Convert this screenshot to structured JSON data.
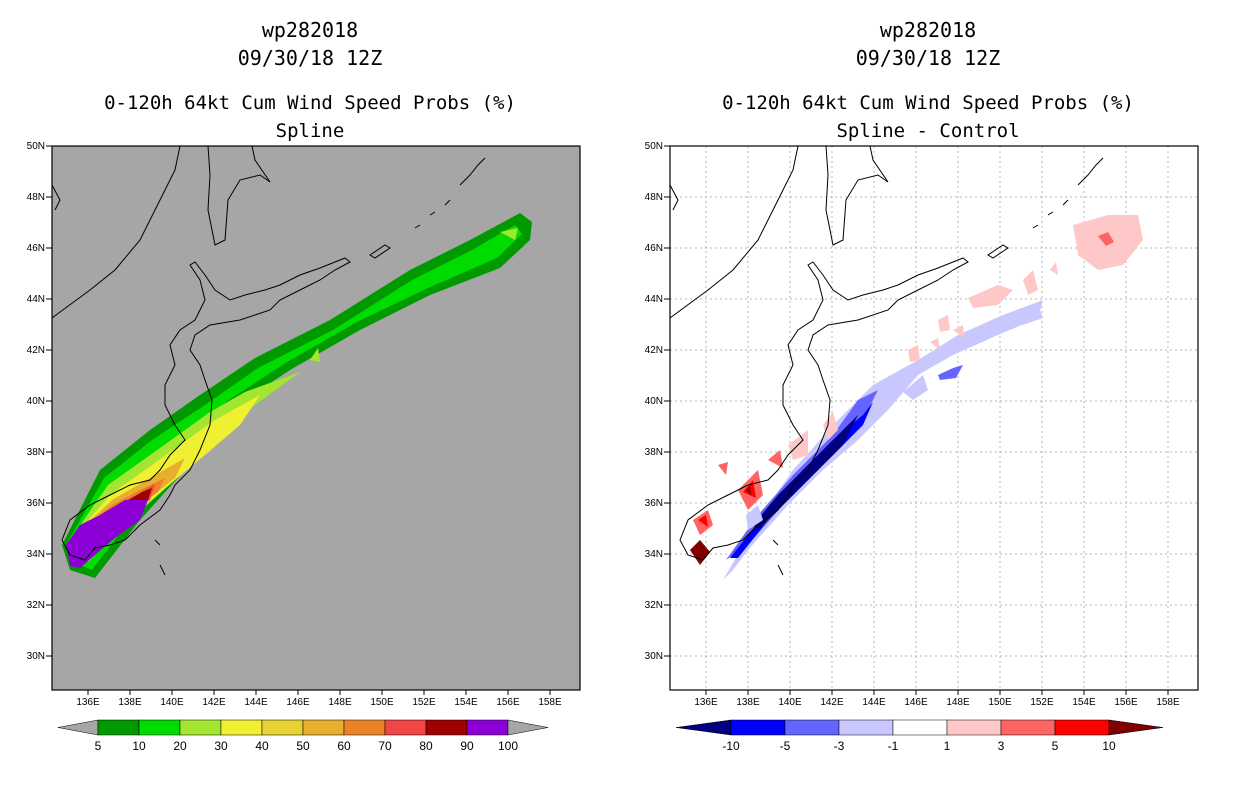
{
  "left": {
    "storm_id": "wp282018",
    "datetime": "09/30/18 12Z",
    "product": "0-120h 64kt Cum Wind Speed Probs (%)",
    "variant": "Spline",
    "background_color": "#a6a6a6"
  },
  "right": {
    "storm_id": "wp282018",
    "datetime": "09/30/18 12Z",
    "product": "0-120h 64kt Cum Wind Speed Probs (%)",
    "variant": "Spline - Control"
  },
  "axes": {
    "lat_labels": [
      "50N",
      "48N",
      "46N",
      "44N",
      "42N",
      "40N",
      "38N",
      "36N",
      "34N",
      "32N",
      "30N"
    ],
    "lon_labels": [
      "136E",
      "138E",
      "140E",
      "142E",
      "144E",
      "146E",
      "148E",
      "150E",
      "152E",
      "154E",
      "156E",
      "158E"
    ]
  },
  "left_legend": {
    "labels": [
      "5",
      "10",
      "20",
      "30",
      "40",
      "50",
      "60",
      "70",
      "80",
      "90",
      "100"
    ],
    "colors": [
      "#a6a6a6",
      "#009a00",
      "#00dc00",
      "#a2e632",
      "#f0f032",
      "#e6d232",
      "#e6af2d",
      "#eb8228",
      "#f04646",
      "#a00000",
      "#8c00d7",
      "#a6a6a6"
    ]
  },
  "right_legend": {
    "labels": [
      "-10",
      "-5",
      "-3",
      "-1",
      "1",
      "3",
      "5",
      "10"
    ],
    "colors": [
      "#000080",
      "#0000ff",
      "#6464ff",
      "#c8c8ff",
      "#ffffff",
      "#ffc8c8",
      "#ff6464",
      "#ff0000",
      "#800000"
    ]
  }
}
